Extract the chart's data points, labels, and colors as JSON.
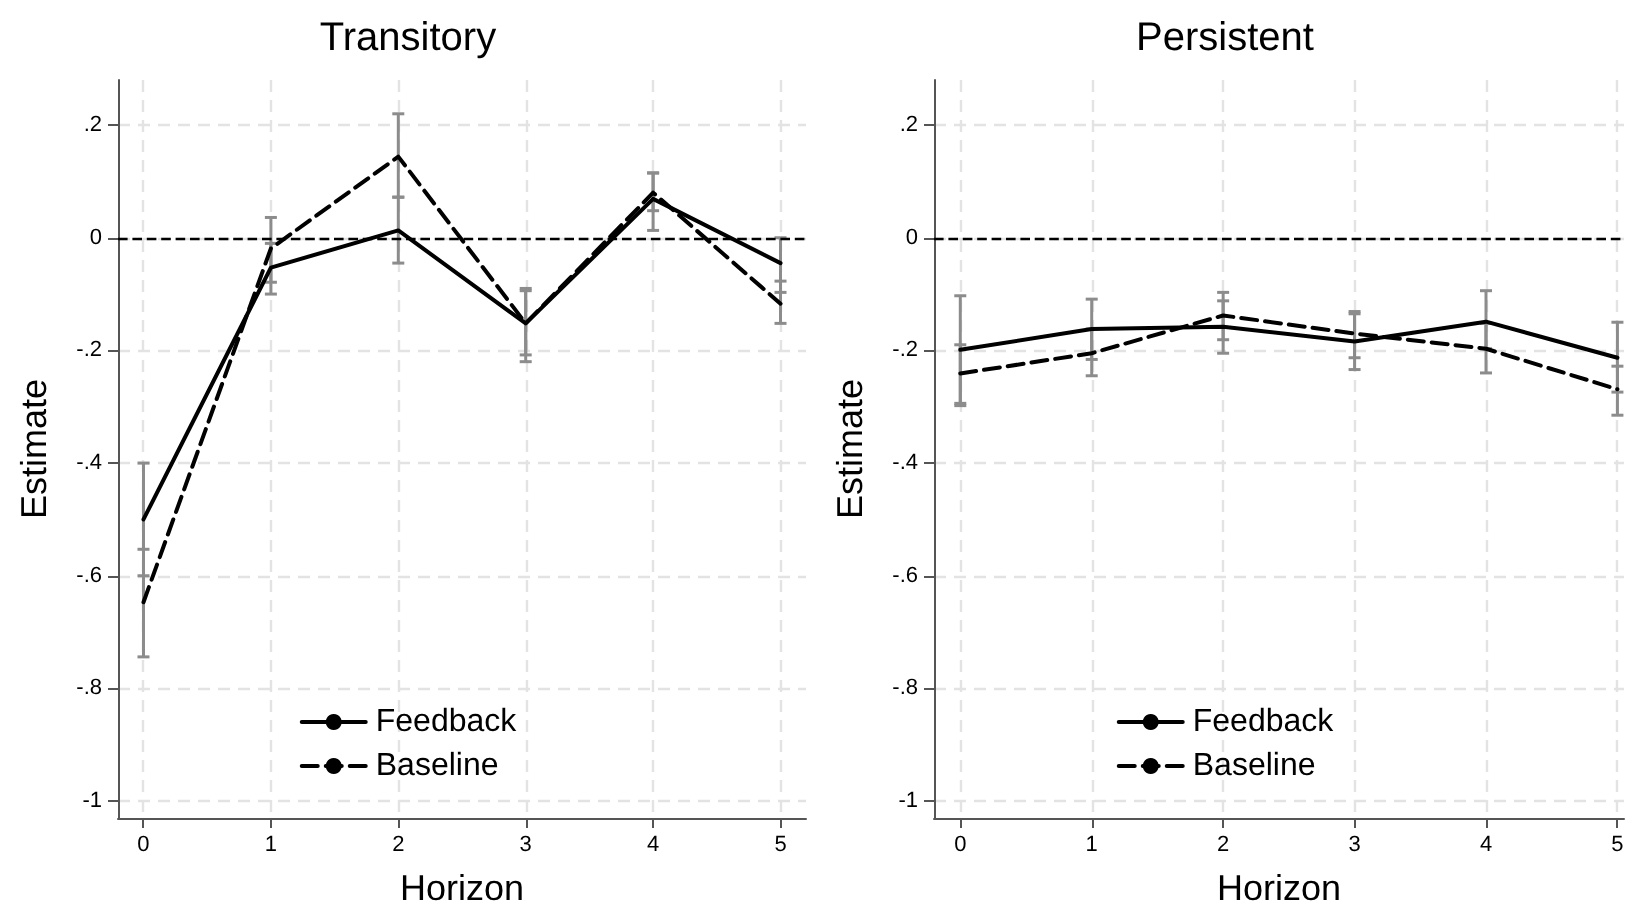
{
  "chart_data": [
    {
      "type": "line",
      "title": "Transitory",
      "xlabel": "Horizon",
      "ylabel": "Estimate",
      "x": [
        0,
        1,
        2,
        3,
        4,
        5
      ],
      "series": [
        {
          "name": "Feedback",
          "color": "#000000",
          "line_style": "solid",
          "values": [
            -0.5,
            -0.053,
            0.013,
            -0.152,
            0.069,
            -0.045
          ],
          "errors": [
            [
              -0.6,
              -0.4
            ],
            [
              -0.1,
              -0.01
            ],
            [
              -0.045,
              0.072
            ],
            [
              -0.22,
              -0.09
            ],
            [
              0.013,
              0.115
            ],
            [
              -0.097,
              0.0
            ]
          ]
        },
        {
          "name": "Baseline",
          "color": "#000000",
          "line_style": "dashed",
          "values": [
            -0.647,
            -0.019,
            0.144,
            -0.152,
            0.08,
            -0.117
          ],
          "errors": [
            [
              -0.744,
              -0.553
            ],
            [
              -0.079,
              0.036
            ],
            [
              0.072,
              0.22
            ],
            [
              -0.208,
              -0.094
            ],
            [
              0.048,
              0.115
            ],
            [
              -0.152,
              -0.077
            ]
          ]
        }
      ],
      "xlim": [
        -0.2,
        5.2
      ],
      "xticks": [
        0,
        1,
        2,
        3,
        4,
        5
      ],
      "ylim": [
        -1.03,
        0.28
      ],
      "yticks": [
        {
          "value": -1,
          "label": "-1"
        },
        {
          "value": -0.8,
          "label": "-.8"
        },
        {
          "value": -0.6,
          "label": "-.6"
        },
        {
          "value": -0.4,
          "label": "-.4"
        },
        {
          "value": -0.2,
          "label": "-.2"
        },
        0,
        {
          "value": 0.2,
          "label": ".2"
        }
      ],
      "ref_lines": [
        {
          "axis": "y",
          "value": 0,
          "color": "#000000",
          "line_style": "dashed"
        }
      ],
      "grid": true,
      "legend": "bottom",
      "marker": "none"
    },
    {
      "type": "line",
      "title": "Persistent",
      "xlabel": "Horizon",
      "ylabel": "Estimate",
      "x": [
        0,
        1,
        2,
        3,
        4,
        5
      ],
      "series": [
        {
          "name": "Feedback",
          "color": "#000000",
          "line_style": "solid",
          "values": [
            -0.199,
            -0.162,
            -0.158,
            -0.184,
            -0.149,
            -0.213
          ],
          "errors": [
            [
              -0.298,
              -0.103
            ],
            [
              -0.216,
              -0.109
            ],
            [
              -0.205,
              -0.112
            ],
            [
              -0.234,
              -0.135
            ],
            [
              -0.197,
              -0.094
            ],
            [
              -0.274,
              -0.15
            ]
          ]
        },
        {
          "name": "Baseline",
          "color": "#000000",
          "line_style": "dashed",
          "values": [
            -0.241,
            -0.205,
            -0.138,
            -0.17,
            -0.197,
            -0.269
          ],
          "errors": [
            [
              -0.294,
              -0.19
            ],
            [
              -0.245,
              -0.162
            ],
            [
              -0.181,
              -0.097
            ],
            [
              -0.213,
              -0.131
            ],
            [
              -0.24,
              -0.152
            ],
            [
              -0.315,
              -0.228
            ]
          ]
        }
      ],
      "xlim": [
        -0.2,
        5.05
      ],
      "xticks": [
        0,
        1,
        2,
        3,
        4,
        5
      ],
      "ylim": [
        -1.03,
        0.28
      ],
      "yticks": [
        {
          "value": -1,
          "label": "-1"
        },
        {
          "value": -0.8,
          "label": "-.8"
        },
        {
          "value": -0.6,
          "label": "-.6"
        },
        {
          "value": -0.4,
          "label": "-.4"
        },
        {
          "value": -0.2,
          "label": "-.2"
        },
        0,
        {
          "value": 0.2,
          "label": ".2"
        }
      ],
      "ref_lines": [
        {
          "axis": "y",
          "value": 0,
          "color": "#000000",
          "line_style": "dashed"
        }
      ],
      "grid": true,
      "legend": "bottom",
      "marker": "none"
    }
  ]
}
